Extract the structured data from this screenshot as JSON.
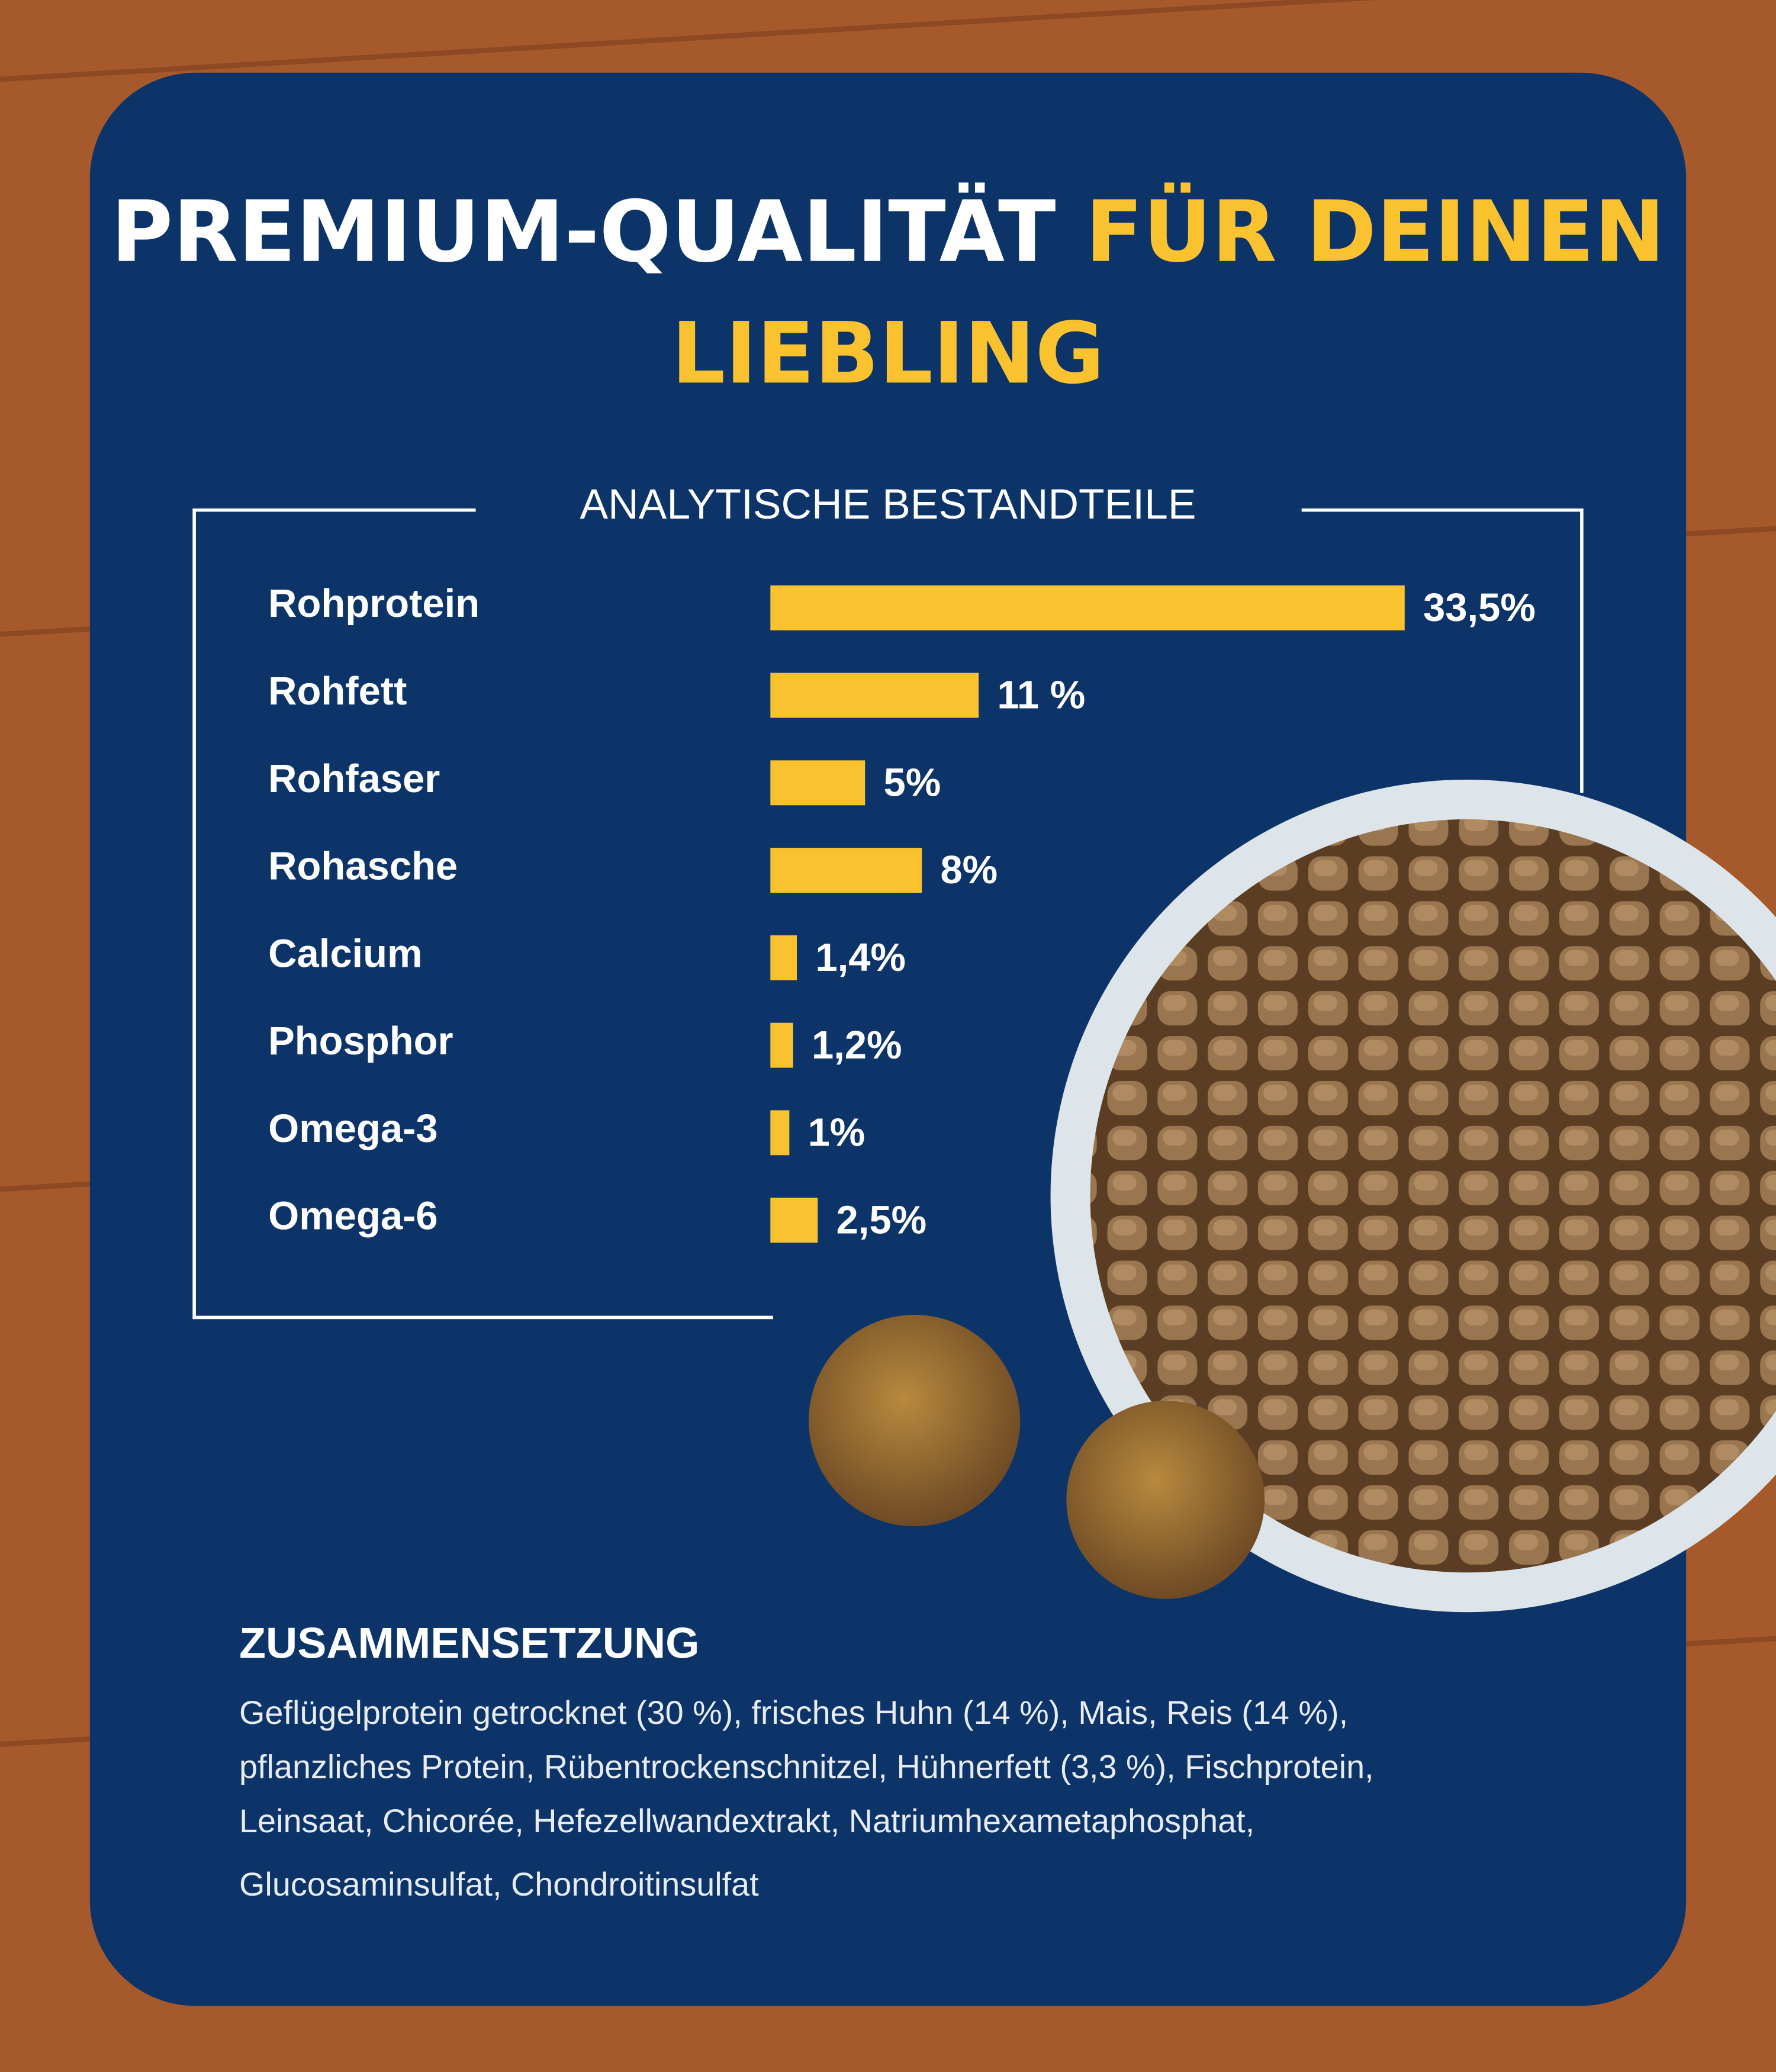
{
  "title_parts": [
    "PREMIUM-QUALITÄT",
    "FÜR DEINEN",
    "LIEBLING"
  ],
  "chart_data": {
    "type": "bar",
    "orientation": "horizontal",
    "title": "ANALYTISCHE BESTANDTEILE",
    "categories": [
      "Rohprotein",
      "Rohfett",
      "Rohfaser",
      "Rohasche",
      "Calcium",
      "Phosphor",
      "Omega-3",
      "Omega-6"
    ],
    "values": [
      33.5,
      11,
      5,
      8,
      1.4,
      1.2,
      1,
      2.5
    ],
    "value_labels": [
      "33,5%",
      "11 %",
      "5%",
      "8%",
      "1,4%",
      "1,2%",
      "1%",
      "2,5%"
    ],
    "color": "#fbc230",
    "grid": false
  },
  "composition": {
    "heading": "ZUSAMMENSETZUNG",
    "lines": [
      "Geflügelprotein getrocknet (30 %), frisches Huhn (14 %), Mais, Reis (14 %),",
      "pflanzliches Protein, Rübentrockenschnitzel, Hühnerfett (3,3 %), Fischprotein,",
      "Leinsaat, Chicorée, Hefezellwandextrakt, Natriumhexametaphosphat,",
      "Glucosaminsulfat, Chondroitinsulfat"
    ]
  }
}
